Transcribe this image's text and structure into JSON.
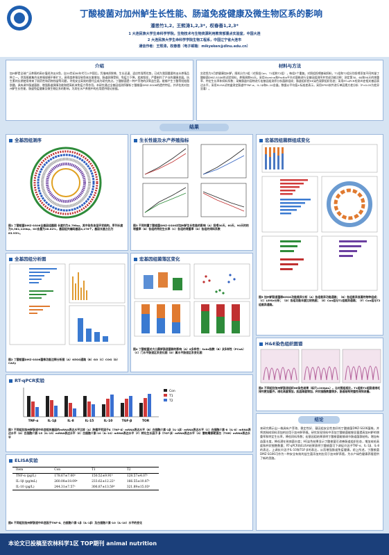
{
  "header": {
    "title": "丁酸梭菌对加州鲈生长性能、肠道免疫健康及微生物区系的影响",
    "authors": "潘思竹1,2，王熙涛1,2,3*，权春善1,2,3*",
    "affiliations": [
      "1 大连民族大学生命科学学院，生物技术与生物资源利用教育部重点实验室，中国大连",
      "2 大连民族大学生命科学学院生物工程系，中国辽宁省大连市"
    ],
    "correspondence": "通信作者：王熙涛，权春善（电子邮箱：mikyeken@dlnu.edu.cn）"
  },
  "intro": {
    "heading": "介绍",
    "text": "加州鲈是全球广泛养殖的高价值经济淡水鱼，自20世纪80年代引入中国后，凭借肉质鲜美、生长迅速、适应性强等优势，已成为我国重要的淡水养殖品种之一。然而随着集约化养殖规模不断扩大，高密度养殖导致鱼体应激增加、肠道屏障受损、免疫力下降，疾病频发，严重制约了产业的健康发展。抗生素的长期使用带来了耐药性和药物残留等问题，寻找安全高效的替代品成为研究热点。丁酸梭菌是一种产芽孢的厌氧益生菌，能够产生丁酸等短链脂肪酸，具有调节肠道菌群、增强肠道屏障功能和提高机体免疫力等作用。本研究通过全基因组测序解析丁酸梭菌DMZ-SG06的遗传特征，并评估其对加州鲈生长性能、肠道免疫健康及微生物区系的影响，为其在水产养殖中的应用提供理论依据。"
  },
  "methods": {
    "heading": "材料与方法",
    "text": "实验鱼为3月龄健康加州鲈，随机分为3组（对照组Con、T1组和T2组），每组3个重复。对照组投喂基础饲料，T1组和T2组分别投喂添加不同剂量丁酸梭菌DMZ-SG06的试验饲料，养殖周期90天。采用Illumina和PacBio平台对菌株进行全基因组测序并完成功能注释；测定第30、60和90天的增重率、特定生长率和饲料系数；采集肠道内容物进行宏基因组测序分析菌群组成；肠道组织经HE染色观察组织形态；采用RT-qPCR检测炎症相关基因表达水平，采用ELISA试剂盒测定肠道中TNF-α、IL-1β和IL-10含量。数据以平均值±标准差表示，采用SPSS软件进行单因素方差分析（P<0.05为差异显著）。"
  },
  "results_heading": "结果",
  "sections": [
    {
      "title": "全基因组测序",
      "caption": "图1 丁酸梭菌DMZ-SG06全基因组圈图 长度约为4.7Mbp，其中染色体呈环状结构，序列长度为3,981,120bp，GC含量为28.82%，基因组共编码基因4,276个，基因长度占比为83.93%。"
    },
    {
      "title": "生长性能及水产养殖指标",
      "caption": "图3 不同剂量丁酸梭菌DMZ-SG06对加州鲈生长性能的影响（A）投喂30天、60天、90天时的增重率（B）各组的特定生长率（C）各组的增重率（D）各组的饲料系数"
    },
    {
      "title": "宏基因组菌群组成变化",
      "caption": "图5 加州鲈肠道菌群KEGG功能差异分析（A）各组差异功能通路；（B）各组差异显著的物种组成；（C）LEfSe分析；（D）各组功能丰度比较热图；（E）Con组与T1组差异通路；（F）Con组与T2组差异通路。"
    },
    {
      "title": "全基因组分析图",
      "caption": "图2 丁酸梭菌DMZ-SG06菌株功能注释分析图（A）KEGG通路（B）GO（C）COG（D）CAZy"
    },
    {
      "title": "宏基因组菌落区变化",
      "caption": "图4 丁酸梭菌对大口黑鲈肠道菌群的影响（A）α多样性：Sobs指数（B）β多样性（PCoA）（C）门水平肠道区系变化图（D）属水平肠道区系变化图"
    },
    {
      "title": "H&E染色组织图谱",
      "caption": "图6 不同组别加州鲈肠道组织HE染色结果（标尺=200μm）。与对照组相比，T1组和T2组肠道绒毛排列更加整齐，绒毛高度增加，肌层厚度增加，杯状细胞数量增多，肠道结构完整性得到改善。"
    },
    {
      "title": "RT-qPCR实验",
      "caption": "图7 不同组别加州鲈肠道中炎症相关基因的mRNA表达水平比较（A）肿瘤坏死因子α（TNF-α）mRNA表达水平（B）白细胞介素-1β（IL-1β）mRNA表达水平（C）白细胞介素-8（IL-8）mRNA表达水平（D）白细胞介素-15（IL-15）mRNA表达水平（E）白细胞介素-10（IL-10）mRNA表达水平（F）转化生长因子-β（TGF-β）mRNA表达水平（G）雷帕霉素靶蛋白（TOR）mRNA表达水平"
    },
    {
      "title": "ELISA实验",
      "caption": "图8 不同组别加州鲈肠道中炎症因子TNF-α、白细胞介素-1β（IL-1β）及白细胞介素-10（IL-10）水平的变化"
    }
  ],
  "qpcr_legend": [
    "Con",
    "T1",
    "T2"
  ],
  "qpcr_genes": [
    "TNF-α",
    "IL-1β",
    "IL-8",
    "IL-15",
    "IL-10",
    "TGF-β",
    "TOR"
  ],
  "table": {
    "columns": [
      "Item",
      "Con",
      "T1",
      "T2"
    ],
    "rows": [
      [
        "TNF-α (pg/L)",
        "178.67±7.00ᵃ",
        "150.52±9.91ᵇ",
        "128.57±4.07ᶜ"
      ],
      [
        "IL-1β (pg/mL)",
        "260.08±18.09ᵃ",
        "233.62±12.22ᵇ",
        "166.55±10.87ᶜ"
      ],
      [
        "IL-10 (pg/L)",
        "244.31±7.57ᶜ",
        "306.87±13.59ᵇ",
        "321.89±15.03ᵃ"
      ]
    ]
  },
  "conclusion": {
    "heading": "结论",
    "text": "本研究揭示出一株具有产芽孢、稳定性好、基因组安全性良好的丁酸梭菌DMZ-SG06菌株，并将其制成饲料添加剂应用于加州鲈养殖。研究发现饲料中添加丁酸梭菌能够显著提高加州鲈的增重率和特定生长率，降低饲料系数；宏基因组结果表明丁酸梭菌能够调节肠道菌群结构，增加有益菌丰度，降低潜在致病菌丰度；HE染色结果显示丁酸梭菌可改善肠道组织形态，增加绒毛高度和杯状细胞数量；RT-qPCR和ELISA结果表明丁酸梭菌可下调促炎因子TNF-α、IL-1β、IL-8的表达，上调抗炎因子IL-10和TGF-β的表达，从而增强肠道免疫健康。综上所述，丁酸梭菌DMZ-SG06可作为一种安全有效的益生菌添加剂应用于加州鲈养殖，为水产绿色健康养殖提供了新的思路。"
  },
  "footer": "本论文已投稿至农林科学1区 TOP期刊 animal nutrition"
}
